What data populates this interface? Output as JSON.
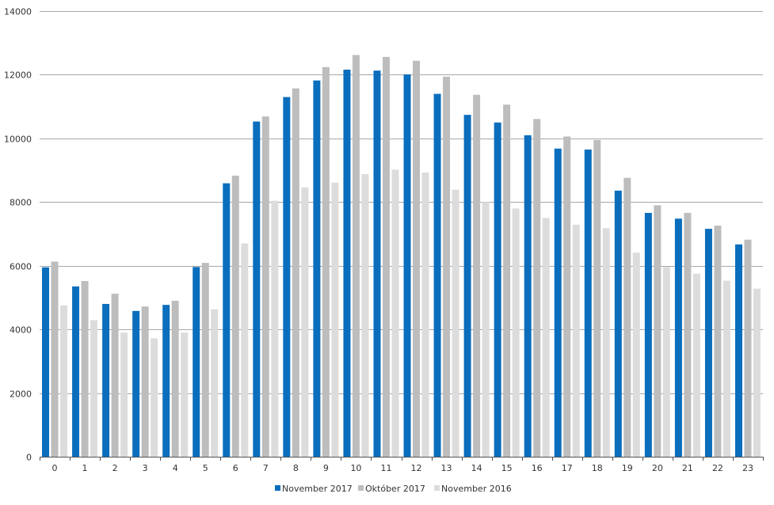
{
  "chart_data": {
    "type": "bar",
    "title": "",
    "xlabel": "",
    "ylabel": "",
    "categories": [
      "0",
      "1",
      "2",
      "3",
      "4",
      "5",
      "6",
      "7",
      "8",
      "9",
      "10",
      "11",
      "12",
      "13",
      "14",
      "15",
      "16",
      "17",
      "18",
      "19",
      "20",
      "21",
      "22",
      "23"
    ],
    "series": [
      {
        "name": "November 2017",
        "color": "#0a6ebd",
        "values": [
          5950,
          5350,
          4800,
          4580,
          4770,
          5960,
          8590,
          10530,
          11300,
          11820,
          12160,
          12130,
          12010,
          11400,
          10740,
          10500,
          10100,
          9680,
          9650,
          8360,
          7660,
          7480,
          7160,
          6670
        ]
      },
      {
        "name": "Október 2017",
        "color": "#bdbdbd",
        "values": [
          6130,
          5520,
          5120,
          4720,
          4900,
          6090,
          8830,
          10690,
          11570,
          12240,
          12620,
          12560,
          12440,
          11940,
          11370,
          11060,
          10610,
          10060,
          9950,
          8760,
          7900,
          7660,
          7260,
          6820
        ]
      },
      {
        "name": "November 2016",
        "color": "#dcdcdc",
        "values": [
          4750,
          4290,
          3900,
          3720,
          3900,
          4630,
          6700,
          8040,
          8460,
          8610,
          8880,
          9020,
          8930,
          8390,
          8000,
          7800,
          7500,
          7290,
          7180,
          6410,
          5960,
          5750,
          5530,
          5280
        ]
      }
    ],
    "y_ticks": [
      "0",
      "2000",
      "4000",
      "6000",
      "8000",
      "10000",
      "12000",
      "14000"
    ],
    "ylim": [
      0,
      14000
    ],
    "grid": true,
    "legend_position": "bottom",
    "colors": {
      "grid": "#a8a8a8",
      "axis": "#555555"
    }
  }
}
